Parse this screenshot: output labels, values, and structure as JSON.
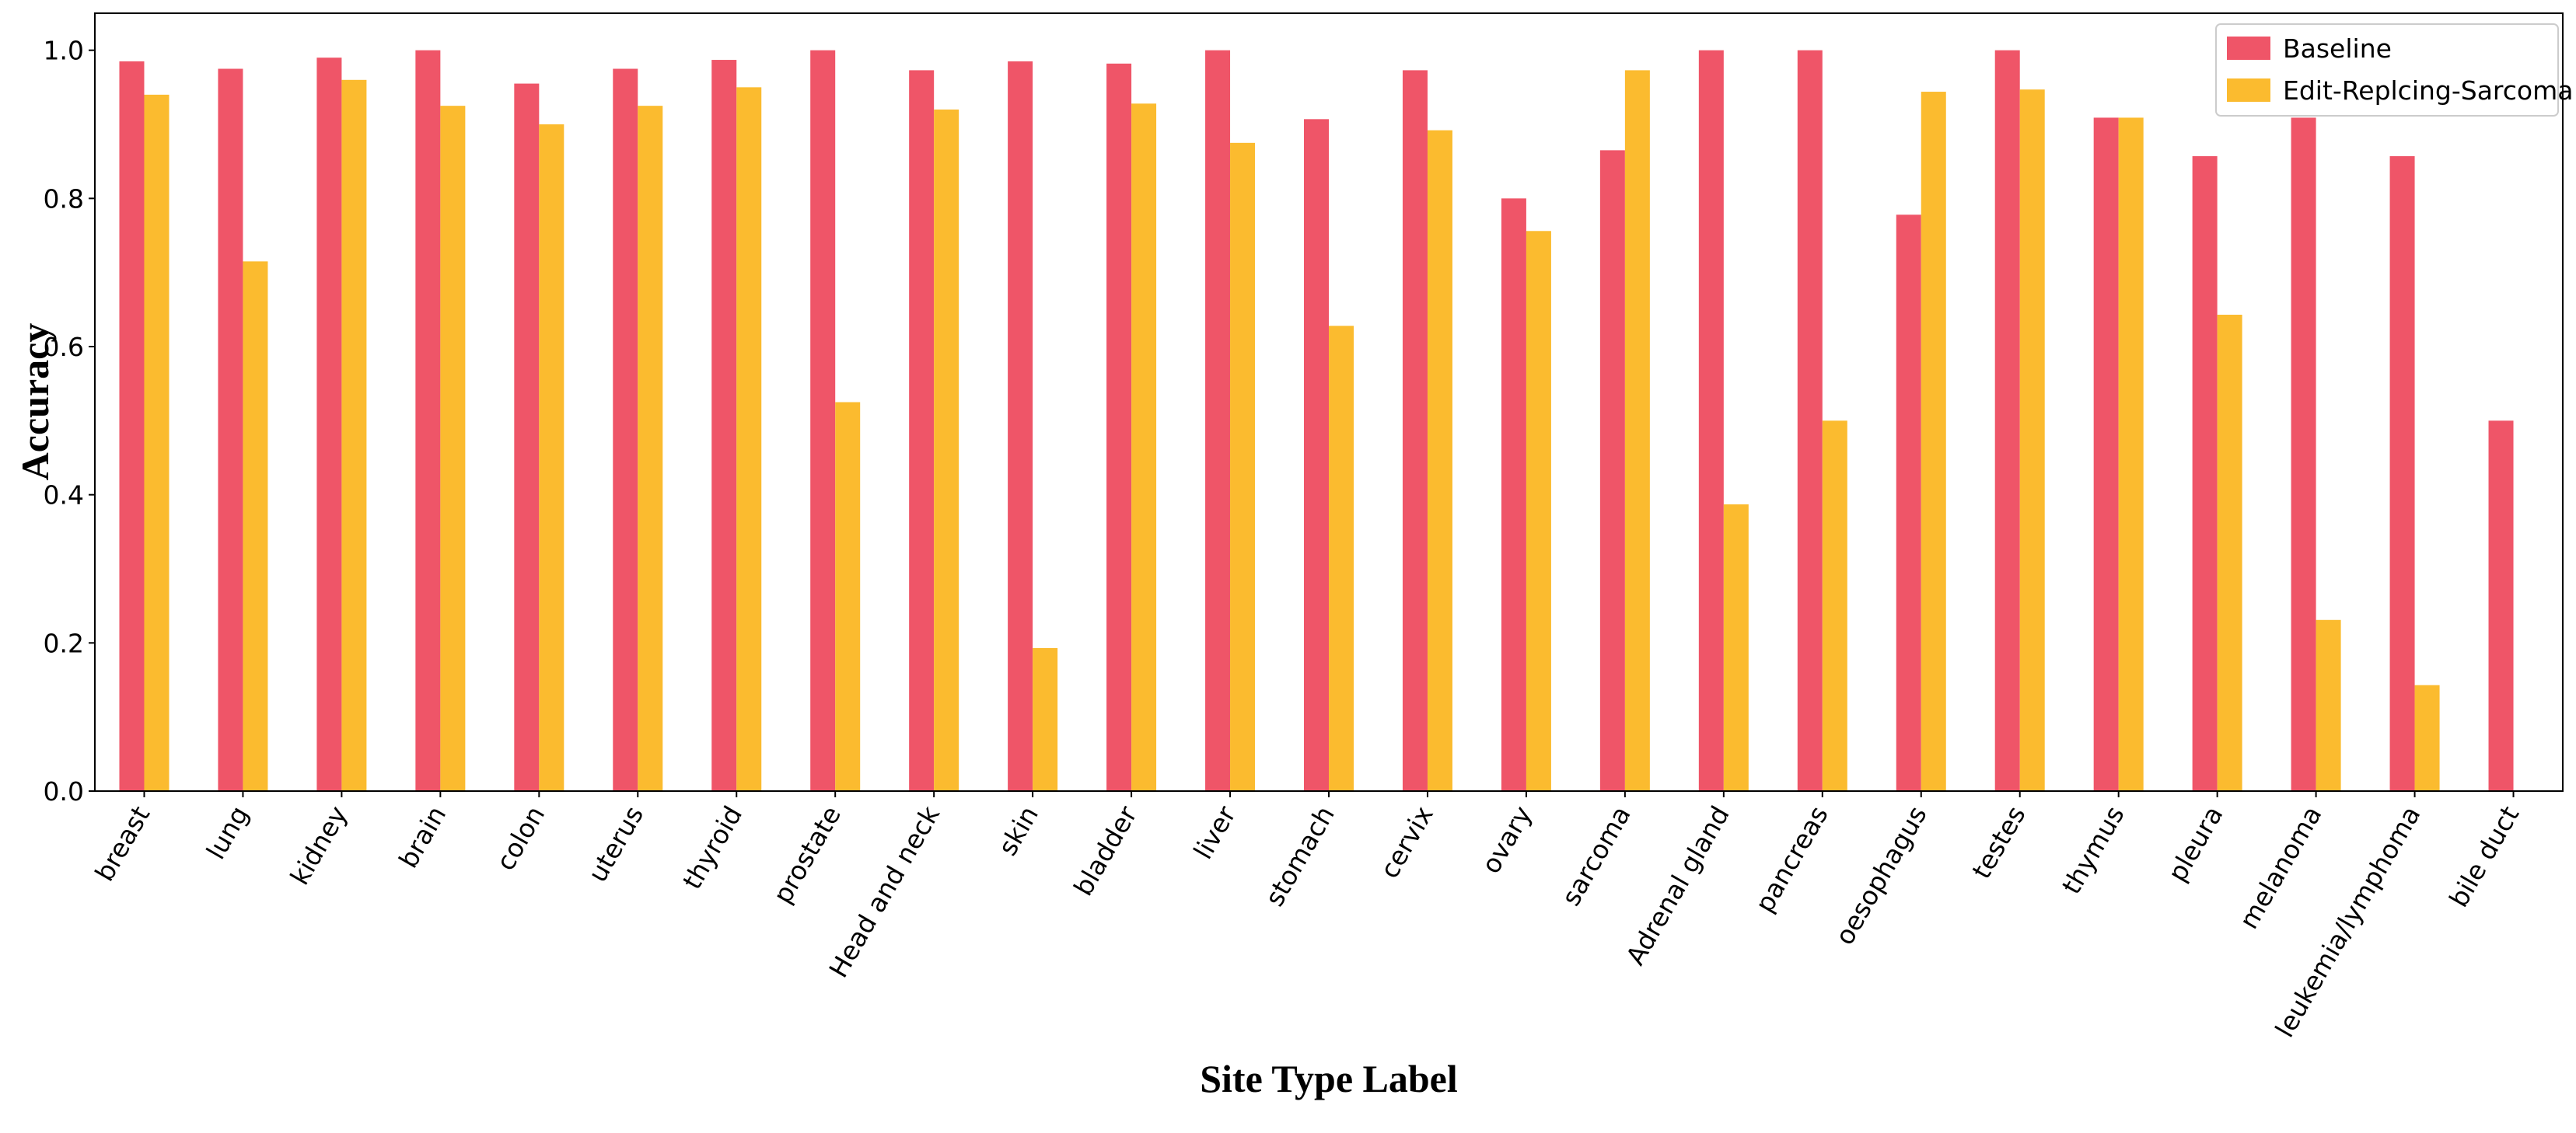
{
  "chart_data": {
    "type": "bar",
    "x_label": "Site Type Label",
    "y_label": "Accuracy",
    "categories": [
      "breast",
      "lung",
      "kidney",
      "brain",
      "colon",
      "uterus",
      "thyroid",
      "prostate",
      "Head and neck",
      "skin",
      "bladder",
      "liver",
      "stomach",
      "cervix",
      "ovary",
      "sarcoma",
      "Adrenal gland",
      "pancreas",
      "oesophagus",
      "testes",
      "thymus",
      "pleura",
      "melanoma",
      "leukemia/lymphoma",
      "bile duct"
    ],
    "series": [
      {
        "name": "Baseline",
        "color": "#ef5568",
        "values": [
          0.985,
          0.975,
          0.99,
          1.0,
          0.955,
          0.975,
          0.987,
          1.0,
          0.973,
          0.985,
          0.982,
          1.0,
          0.907,
          0.973,
          0.8,
          0.865,
          1.0,
          1.0,
          0.778,
          1.0,
          0.909,
          0.857,
          0.909,
          0.857,
          0.5
        ]
      },
      {
        "name": "Edit-Replcing-Sarcoma",
        "color": "#fbbb2f",
        "values": [
          0.94,
          0.715,
          0.96,
          0.925,
          0.9,
          0.925,
          0.95,
          0.525,
          0.92,
          0.193,
          0.928,
          0.875,
          0.628,
          0.892,
          0.756,
          0.973,
          0.387,
          0.5,
          0.944,
          0.947,
          0.909,
          0.643,
          0.231,
          0.143,
          null
        ]
      }
    ],
    "ylim": [
      0,
      1.05
    ],
    "yticks": [
      {
        "value": 0,
        "label": "0.0"
      },
      0.2,
      0.4,
      0.6,
      0.8,
      {
        "value": 1,
        "label": "1.0"
      }
    ],
    "legend": "upper right"
  }
}
